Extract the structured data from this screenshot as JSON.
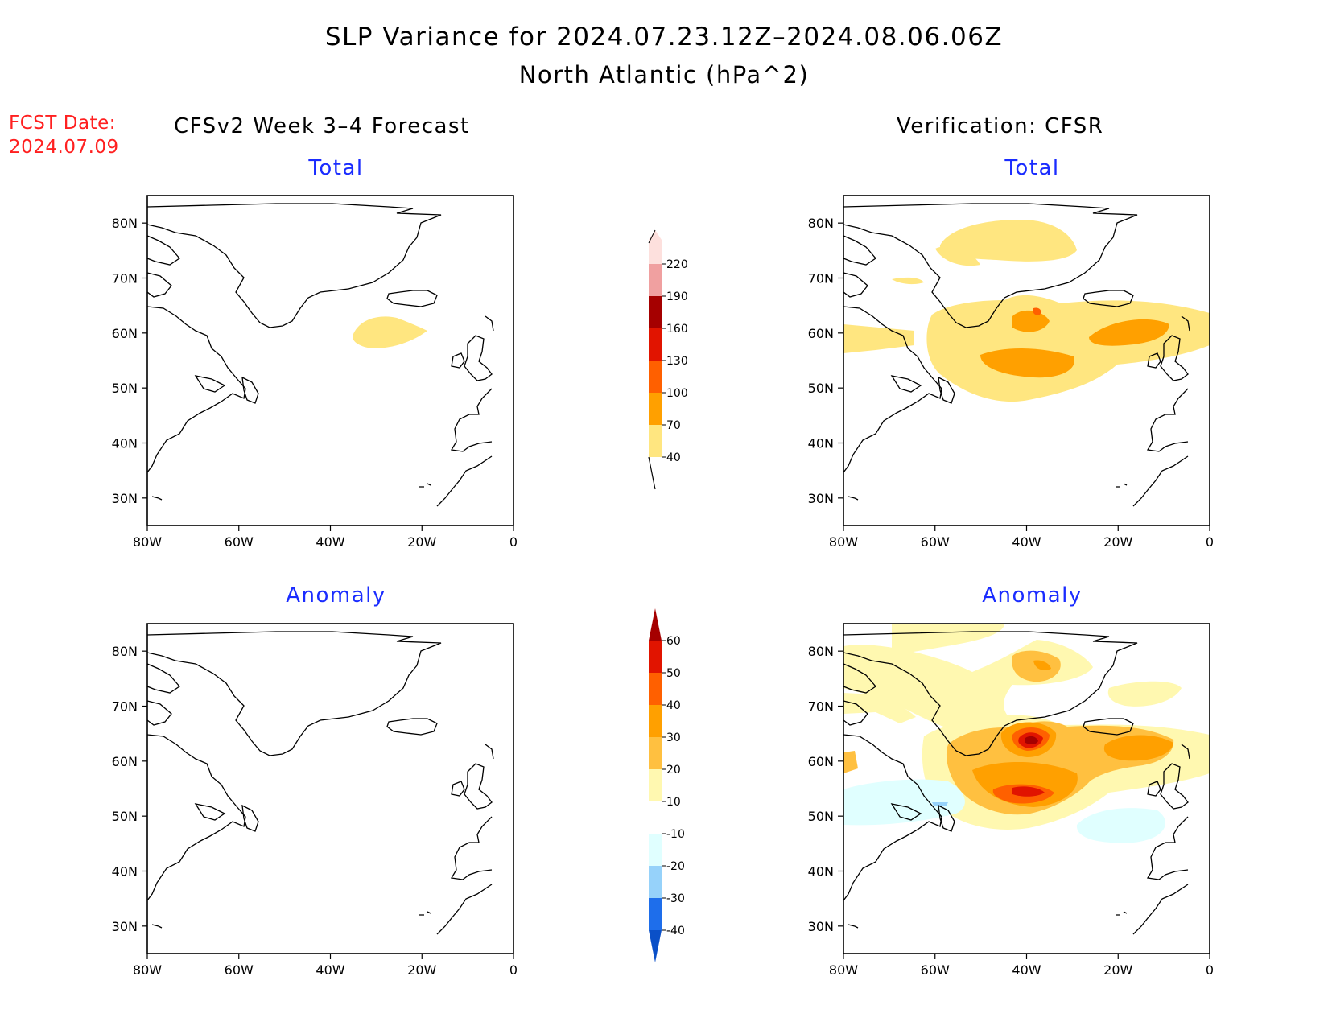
{
  "header": {
    "title_line1": "SLP Variance for 2024.07.23.12Z–2024.08.06.06Z",
    "title_line2": "North Atlantic (hPa^2)",
    "fcst_label": "FCST Date:",
    "fcst_date": "2024.07.09"
  },
  "columns": {
    "left": "CFSv2 Week 3–4 Forecast",
    "right": "Verification: CFSR"
  },
  "panels": {
    "forecast_total": "Total",
    "forecast_anomaly": "Anomaly",
    "verif_total": "Total",
    "verif_anomaly": "Anomaly"
  },
  "axes": {
    "lat_ticks": [
      "80N",
      "70N",
      "60N",
      "50N",
      "40N",
      "30N"
    ],
    "lon_ticks": [
      "80W",
      "60W",
      "40W",
      "20W",
      "0"
    ],
    "lat_range": [
      25,
      85
    ],
    "lon_range": [
      -80,
      0
    ]
  },
  "total_colorbar": {
    "levels": [
      "40",
      "70",
      "100",
      "130",
      "160",
      "190",
      "220"
    ],
    "colors": [
      "#ffe680",
      "#ffa000",
      "#ff6000",
      "#e11400",
      "#a50000",
      "#f0a0a0",
      "#fde0dd"
    ]
  },
  "anomaly_colorbar": {
    "levels": [
      "60",
      "50",
      "40",
      "30",
      "20",
      "10",
      "-10",
      "-20",
      "-30",
      "-40"
    ],
    "colors": [
      "#a50000",
      "#e11400",
      "#ff6000",
      "#ffa000",
      "#ffc040",
      "#fff8b0",
      "#ffffff",
      "#e0ffff",
      "#96d2fa",
      "#1e6eeb",
      "#0a50c8"
    ]
  }
}
